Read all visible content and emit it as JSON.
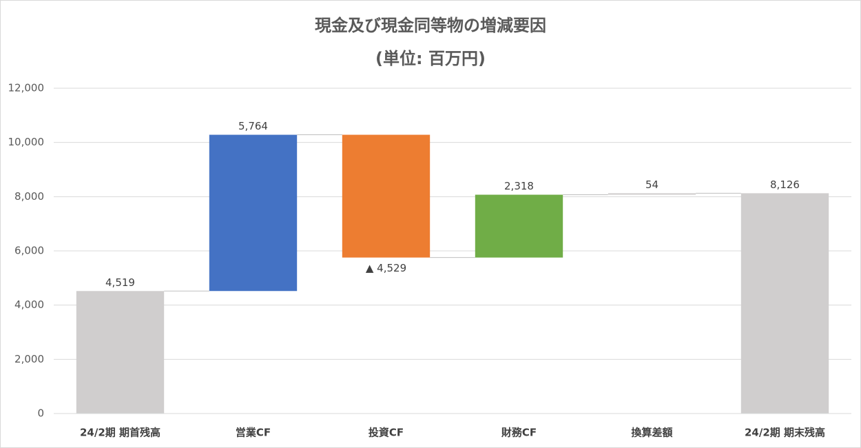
{
  "chart_data": {
    "type": "waterfall",
    "title": "現金及び現金同等物の増減要因",
    "subtitle": "(単位: 百万円)",
    "categories": [
      "24/2期 期首残高",
      "営業CF",
      "投資CF",
      "財務CF",
      "換算差額",
      "24/2期 期末残高"
    ],
    "values": [
      4519,
      5764,
      -4529,
      2318,
      54,
      8126
    ],
    "value_labels": [
      "4,519",
      "5,764",
      "▲ 4,529",
      "2,318",
      "54",
      "8,126"
    ],
    "measures": [
      "absolute",
      "relative",
      "relative",
      "relative",
      "relative",
      "total"
    ],
    "colors": [
      "#d0cece",
      "#4472c4",
      "#ed7d31",
      "#70ad47",
      "#d0cece",
      "#d0cece"
    ],
    "ylim": [
      0,
      12000
    ],
    "yticks": [
      0,
      {
        "value": 2000,
        "label": "2,000"
      },
      {
        "value": 4000,
        "label": "4,000"
      },
      {
        "value": 6000,
        "label": "6,000"
      },
      {
        "value": 8000,
        "label": "8,000"
      },
      {
        "value": 10000,
        "label": "10,000"
      },
      {
        "value": 12000,
        "label": "12,000"
      }
    ],
    "grid": true
  }
}
